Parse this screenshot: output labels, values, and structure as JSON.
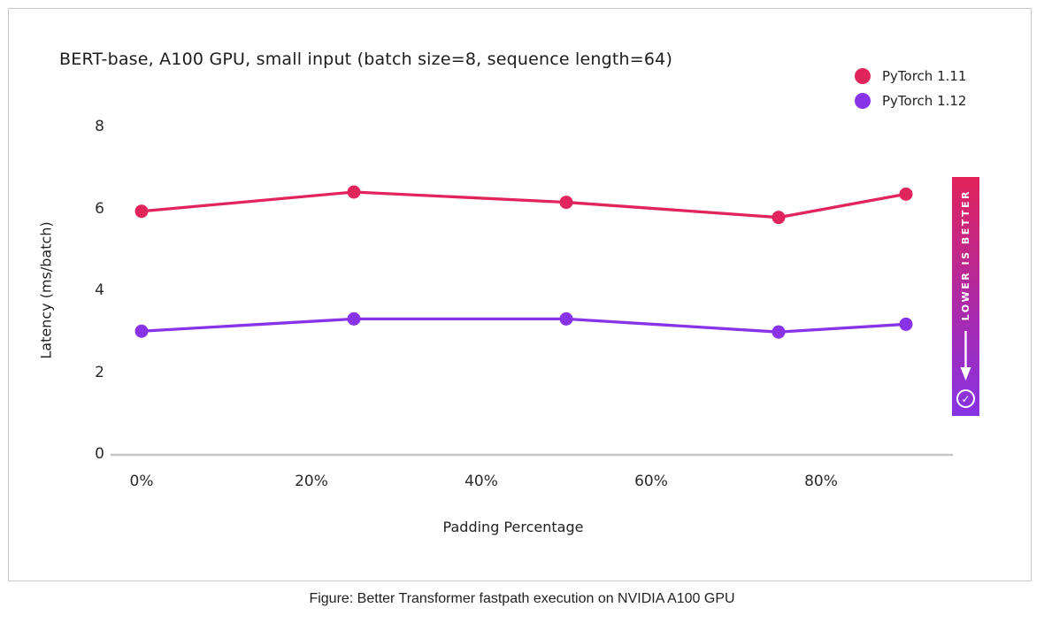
{
  "card": {
    "title": "BERT-base, A100 GPU, small input (batch size=8, sequence length=64)"
  },
  "legend": {
    "items": [
      {
        "label": "PyTorch 1.11",
        "color": "#e1245c"
      },
      {
        "label": "PyTorch 1.12",
        "color": "#8833e8"
      }
    ]
  },
  "banner": {
    "text": "LOWER IS BETTER",
    "arrow_icon": "down-arrow",
    "check_icon": "check-circle",
    "check_glyph": "✓",
    "gradient_top": "#e1235a",
    "gradient_bottom": "#8733e3"
  },
  "caption": "Figure: Better Transformer fastpath execution on NVIDIA A100 GPU",
  "chart_data": {
    "type": "line",
    "title": "BERT-base, A100 GPU, small input (batch size=8, sequence length=64)",
    "xlabel": "Padding Percentage",
    "ylabel": "Latency (ms/batch)",
    "x": [
      0,
      25,
      50,
      75,
      90
    ],
    "xticks": [
      {
        "value": 0,
        "label": "0%"
      },
      {
        "value": 20,
        "label": "20%"
      },
      {
        "value": 40,
        "label": "40%"
      },
      {
        "value": 60,
        "label": "60%"
      },
      {
        "value": 80,
        "label": "80%"
      }
    ],
    "yticks": [
      0,
      2,
      4,
      6,
      8
    ],
    "xlim": [
      0,
      100
    ],
    "ylim": [
      0,
      8
    ],
    "grid": false,
    "legend_position": "top-right",
    "series": [
      {
        "name": "PyTorch 1.11",
        "color": "#e1245c",
        "values": [
          5.93,
          6.4,
          6.15,
          5.78,
          6.35
        ]
      },
      {
        "name": "PyTorch 1.12",
        "color": "#8833e8",
        "values": [
          3.0,
          3.3,
          3.3,
          2.98,
          3.17
        ]
      }
    ],
    "axis_line_color": "#c6c6c6"
  }
}
